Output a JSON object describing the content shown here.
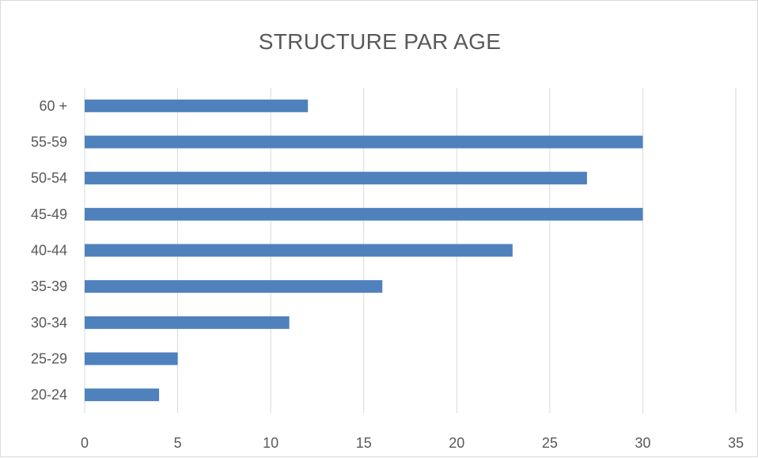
{
  "chart_data": {
    "type": "bar",
    "orientation": "horizontal",
    "title": "STRUCTURE PAR AGE",
    "categories": [
      "60 +",
      "55-59",
      "50-54",
      "45-49",
      "40-44",
      "35-39",
      "30-34",
      "25-29",
      "20-24"
    ],
    "values": [
      12,
      30,
      27,
      30,
      23,
      16,
      11,
      5,
      4
    ],
    "xlim": [
      0,
      35
    ],
    "xticks": [
      0,
      5,
      10,
      15,
      20,
      25,
      30,
      35
    ],
    "grid": true,
    "legend": "none",
    "bar_color": "#4f81bd",
    "grid_color": "#d9d9d9"
  }
}
